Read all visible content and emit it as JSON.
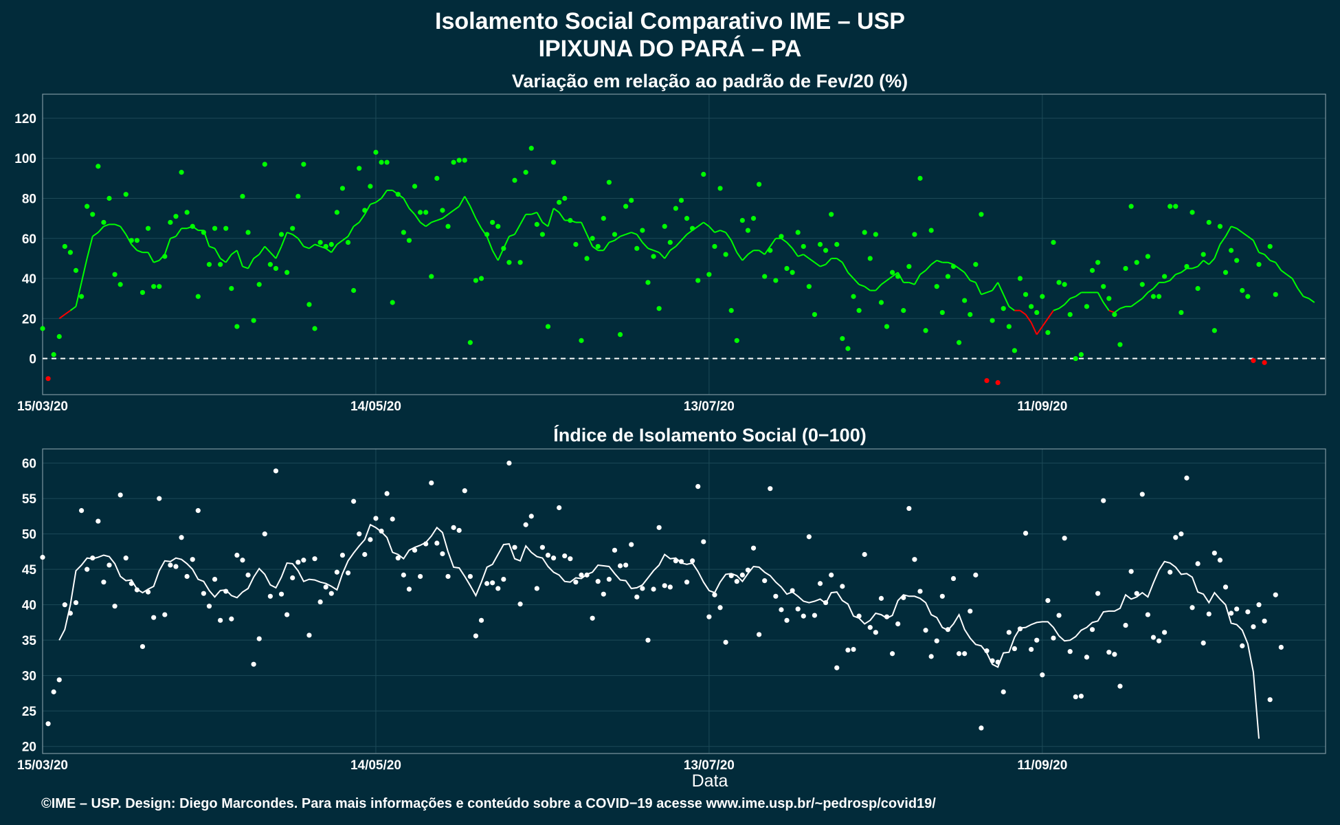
{
  "title": "Isolamento Social Comparativo IME – USP",
  "subtitle": "IPIXUNA DO PARÁ – PA",
  "footer": "©IME – USP. Design: Diego Marcondes. Para mais informações e conteúdo sobre a COVID−19 acesse www.ime.usp.br/~pedrosp/covid19/",
  "colors": {
    "background": "#022b3a",
    "positive": "#00ff00",
    "negative": "#ff0000",
    "index": "#ffffff",
    "grid": "#1d4a58",
    "frame": "#7e96a0"
  },
  "chart_data": [
    {
      "type": "scatter",
      "title": "Variação em relação ao padrão de Fev/20 (%)",
      "xlabel": "",
      "ylabel": "",
      "x_start": "15/03/20",
      "x_end": "01/11/20",
      "x_ticks": [
        "15/03/20",
        "14/05/20",
        "13/07/20",
        "11/09/20"
      ],
      "y_ticks": [
        0,
        20,
        40,
        60,
        80,
        100,
        120
      ],
      "ylim": [
        -18,
        132
      ],
      "reference_line": 0,
      "grid": true,
      "series": [
        {
          "points": [
            15,
            -10,
            2,
            11,
            56,
            53,
            44,
            31,
            76,
            72,
            96,
            68,
            80,
            42,
            37,
            82,
            59,
            59,
            33,
            65,
            36,
            36,
            51,
            68,
            71,
            93,
            73,
            66,
            31,
            63,
            47,
            65,
            47,
            65,
            35,
            16,
            81,
            63,
            19,
            37,
            97,
            47,
            45,
            62,
            43,
            65,
            81,
            97,
            27,
            15,
            58,
            56,
            57,
            73,
            85,
            58,
            34,
            95,
            74,
            86,
            103,
            98,
            98,
            28,
            82,
            63,
            59,
            86,
            73,
            73,
            41,
            90,
            74,
            66,
            98,
            99,
            99,
            8,
            39,
            40,
            62,
            68,
            66,
            55,
            48,
            89,
            48,
            93,
            105,
            67,
            62,
            16,
            98,
            78,
            80,
            69,
            57,
            9,
            50,
            60,
            56,
            70,
            88,
            62,
            12,
            76,
            79,
            55,
            64,
            38,
            51,
            25,
            66,
            58,
            75,
            79,
            70,
            65,
            39,
            92,
            42,
            56,
            85,
            52,
            24,
            9,
            69,
            64,
            70,
            87,
            41,
            54,
            39,
            61,
            45,
            43,
            63,
            56,
            36,
            22,
            57,
            54,
            72,
            57,
            10,
            5,
            31,
            24,
            63,
            50,
            62,
            28,
            16,
            43,
            41,
            24,
            46,
            62,
            90,
            14,
            64,
            36,
            23,
            41,
            46,
            8,
            29,
            22,
            47,
            72,
            -11,
            19,
            -12,
            25,
            16,
            4,
            40,
            32,
            26,
            23,
            31,
            13,
            58,
            38,
            37,
            22,
            0,
            2,
            26,
            44,
            48,
            36,
            30,
            22,
            7,
            45,
            76,
            48,
            37,
            51,
            31,
            31,
            41,
            76,
            76,
            23,
            46,
            73,
            35,
            52,
            68,
            14,
            66,
            43,
            54,
            49,
            34,
            31,
            -1,
            47,
            -2,
            56,
            32
          ]
        }
      ],
      "smoothed": [
        20,
        22,
        24,
        26,
        38,
        50,
        61,
        63,
        66,
        67,
        67,
        66,
        62,
        57,
        54,
        53,
        53,
        48,
        49,
        52,
        60,
        61,
        65,
        65,
        66,
        64,
        64,
        56,
        55,
        50,
        48,
        52,
        54,
        46,
        45,
        50,
        52,
        56,
        53,
        50,
        56,
        63,
        62,
        60,
        56,
        55,
        57,
        56,
        55,
        53,
        57,
        59,
        61,
        66,
        68,
        72,
        77,
        78,
        80,
        84,
        84,
        82,
        80,
        75,
        72,
        68,
        66,
        68,
        69,
        70,
        72,
        74,
        76,
        81,
        76,
        70,
        65,
        61,
        54,
        49,
        55,
        61,
        62,
        67,
        72,
        72,
        73,
        68,
        66,
        75,
        73,
        69,
        69,
        68,
        68,
        62,
        56,
        54,
        54,
        58,
        59,
        61,
        62,
        63,
        62,
        58,
        55,
        54,
        53,
        50,
        54,
        56,
        59,
        62,
        64,
        66,
        68,
        66,
        63,
        64,
        63,
        59,
        53,
        49,
        52,
        54,
        54,
        52,
        56,
        60,
        60,
        58,
        55,
        51,
        52,
        50,
        48,
        46,
        47,
        50,
        50,
        48,
        43,
        40,
        37,
        36,
        34,
        34,
        37,
        39,
        41,
        43,
        38,
        38,
        37,
        42,
        44,
        47,
        49,
        48,
        48,
        47,
        45,
        43,
        39,
        38,
        32,
        33,
        34,
        38,
        32,
        26,
        24,
        24,
        22,
        18,
        12,
        16,
        20,
        24,
        25,
        27,
        30,
        31,
        33,
        33,
        33,
        33,
        28,
        24,
        23,
        25,
        26,
        26,
        28,
        30,
        33,
        35,
        38,
        38,
        39,
        42,
        43,
        45,
        45,
        46,
        49,
        47,
        50,
        57,
        61,
        66,
        65,
        63,
        61,
        59,
        53,
        52,
        49,
        48,
        44,
        42,
        40,
        35,
        31,
        30,
        28
      ]
    },
    {
      "type": "scatter",
      "title": "Índice de Isolamento Social (0−100)",
      "xlabel": "Data",
      "ylabel": "",
      "x_start": "15/03/20",
      "x_end": "01/11/20",
      "x_ticks": [
        "15/03/20",
        "14/05/20",
        "13/07/20",
        "11/09/20"
      ],
      "y_ticks": [
        20,
        25,
        30,
        35,
        40,
        45,
        50,
        55,
        60
      ],
      "ylim": [
        19,
        62
      ],
      "grid": true,
      "series": [
        {
          "points": [
            46.7,
            23.2,
            27.7,
            29.4,
            40,
            38.8,
            40.3,
            53.3,
            45,
            46.6,
            51.8,
            43.2,
            45.6,
            39.8,
            55.5,
            46.6,
            43,
            42.1,
            34.1,
            41.8,
            38.2,
            55,
            38.6,
            45.6,
            45.4,
            49.5,
            44,
            46.4,
            53.3,
            41.6,
            39.8,
            43.6,
            37.8,
            41.9,
            38,
            47,
            46.3,
            44.2,
            31.6,
            35.2,
            50,
            41.2,
            58.9,
            41.5,
            38.6,
            43.8,
            46,
            46.3,
            35.7,
            46.5,
            40.4,
            42.5,
            41.6,
            44.6,
            47,
            44.5,
            54.6,
            50,
            47.1,
            49.2,
            52.2,
            50.4,
            55.7,
            52.1,
            46.6,
            44.2,
            42.2,
            47.7,
            44,
            48.6,
            57.2,
            48.7,
            47.2,
            44,
            50.9,
            50.5,
            56.1,
            44,
            35.6,
            37.8,
            43,
            43.1,
            42.3,
            43.6,
            60,
            48.1,
            40.1,
            51.3,
            52.5,
            42.3,
            48.1,
            47,
            46.6,
            53.7,
            46.9,
            46.5,
            43.2,
            44.2,
            44.2,
            38.1,
            43.3,
            41.5,
            43.6,
            47.7,
            45.5,
            45.6,
            48.5,
            41.1,
            42.3,
            35,
            42.2,
            50.9,
            42.7,
            42.5,
            46.2,
            46.1,
            43.2,
            46.2,
            56.7,
            48.9,
            38.3,
            41.4,
            39.6,
            34.7,
            44.1,
            43.3,
            44.2,
            44.9,
            48,
            35.8,
            43.4,
            56.4,
            41.2,
            39.3,
            37.8,
            42,
            39.4,
            38.4,
            49.6,
            38.5,
            43,
            40.3,
            44.2,
            31.1,
            42.6,
            33.6,
            33.7,
            38.4,
            47.1,
            36.8,
            36.1,
            40.9,
            38.3,
            33.1,
            37.3,
            41,
            53.6,
            46.4,
            41.9,
            36.4,
            32.7,
            34.9,
            41.2,
            36.5,
            43.7,
            33.1,
            33.1,
            39.1,
            44.2,
            22.6,
            33.5,
            32.1,
            31.9,
            27.7,
            36.1,
            33.8,
            36.6,
            50.1,
            33.7,
            35,
            30.1,
            40.6,
            35.3,
            38.5,
            49.4,
            33.4,
            27,
            27.1,
            32.6,
            36.5,
            41.6,
            54.7,
            33.3,
            33,
            28.5,
            37.1,
            44.7,
            41.6,
            55.6,
            38.6,
            35.4,
            34.9,
            36.1,
            44.6,
            49.5,
            50,
            57.9,
            39.6,
            45.8,
            34.6,
            38.7,
            47.3,
            46.3,
            42.5,
            38.8,
            39.4,
            34.2,
            39,
            36.9,
            40,
            37.7,
            26.6,
            41.4,
            34
          ]
        }
      ],
      "smoothed": [
        35,
        36.5,
        40,
        44.8,
        45.6,
        46.6,
        46.5,
        46.7,
        47,
        46.8,
        45.8,
        44,
        43.4,
        43.5,
        42.2,
        41.7,
        42.2,
        42.6,
        44.8,
        46.2,
        46.1,
        46.6,
        46.4,
        45.8,
        45,
        43.6,
        43.3,
        42,
        41.1,
        42,
        42.1,
        41.3,
        41,
        41.8,
        42.3,
        43.9,
        45.1,
        44.3,
        42.8,
        42.4,
        43.9,
        45.9,
        45.8,
        44.8,
        43.3,
        43.6,
        43.5,
        43.2,
        43,
        42.6,
        42.1,
        44.4,
        46.2,
        47.3,
        48.3,
        49.2,
        51.3,
        50.9,
        50.3,
        49.5,
        47.4,
        47.1,
        46.5,
        47.7,
        48.1,
        48.4,
        48.8,
        49.7,
        50.9,
        50.2,
        47.5,
        45.3,
        45.2,
        44,
        42.7,
        41.3,
        43.2,
        45.3,
        45.7,
        47.1,
        48.5,
        48.6,
        46.5,
        46.2,
        48.3,
        47.4,
        46.8,
        46.6,
        45.4,
        44.6,
        44.2,
        43.3,
        43.2,
        43.8,
        43.7,
        44.3,
        44.6,
        45.6,
        45.5,
        45.4,
        44.4,
        43.5,
        43.4,
        42.3,
        42.4,
        42.8,
        43.8,
        44.8,
        45.6,
        47.1,
        46.5,
        46.6,
        45.9,
        45.7,
        45.9,
        44.7,
        43.2,
        42,
        41.7,
        43.2,
        44.3,
        44.4,
        44.1,
        43.3,
        44.4,
        45.4,
        45.3,
        44.6,
        44.1,
        43.2,
        42.5,
        41.5,
        41.8,
        41.2,
        40.5,
        40.3,
        40.5,
        40.8,
        40.2,
        41.7,
        41.8,
        40.6,
        40.1,
        38.4,
        38.1,
        37.3,
        37.8,
        38.8,
        38.6,
        38.1,
        38.5,
        40.6,
        41.4,
        41.2,
        41.2,
        40.9,
        40.3,
        38.6,
        38.2,
        36.8,
        36.4,
        37.3,
        38.6,
        36.5,
        35.3,
        34.4,
        34.2,
        33.2,
        31.6,
        31.2,
        33.2,
        33.3,
        35.4,
        36.7,
        36.8,
        37.2,
        37.5,
        37.6,
        37.6,
        36.8,
        35.6,
        34.9,
        35,
        35.5,
        36.4,
        36.8,
        37.5,
        37.7,
        39,
        39.1,
        39.1,
        39.5,
        41.4,
        40.8,
        41.1,
        41.7,
        41.1,
        43.1,
        44.9,
        46.1,
        45.9,
        45.3,
        44.3,
        44.4,
        43.9,
        41.8,
        41.5,
        40.3,
        41.7,
        40.8,
        40,
        37.4,
        37.2,
        36.4,
        34.5,
        30.5,
        21.1
      ]
    }
  ]
}
